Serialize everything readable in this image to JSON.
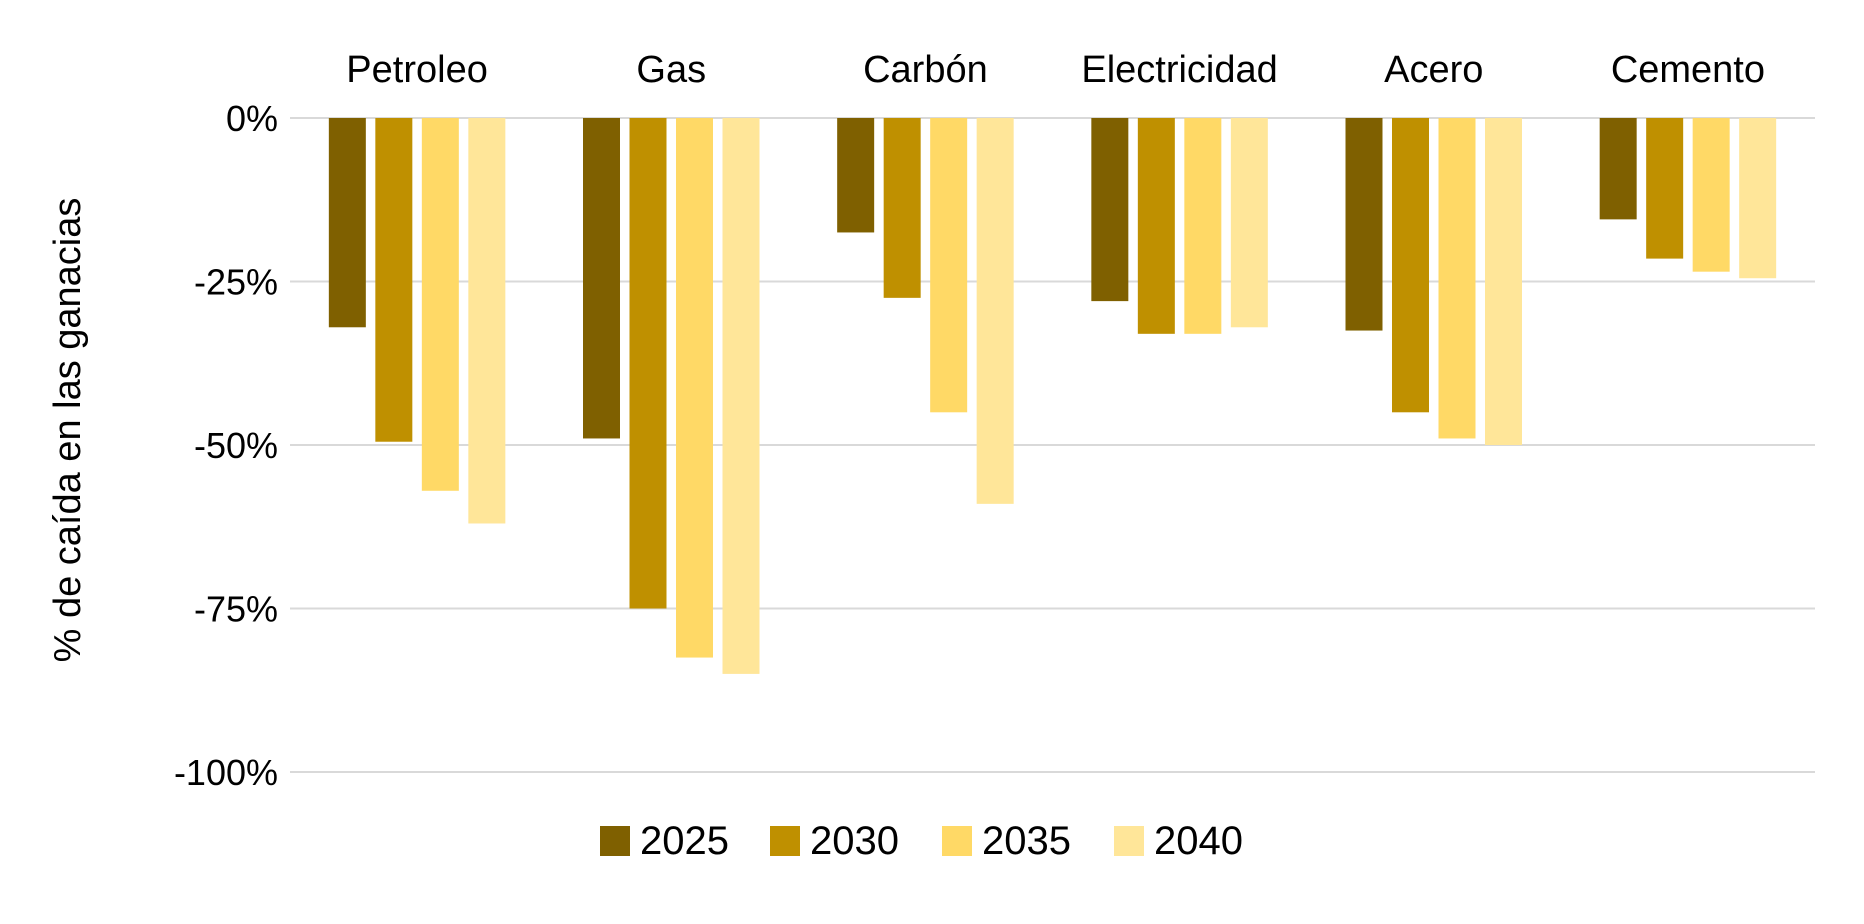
{
  "chart_data": {
    "type": "bar",
    "categories": [
      "Petroleo",
      "Gas",
      "Carbón",
      "Electricidad",
      "Acero",
      "Cemento"
    ],
    "series": [
      {
        "name": "2025",
        "color": "#7F6000",
        "values": [
          -32,
          -49,
          -17.5,
          -28,
          -32.5,
          -15.5
        ]
      },
      {
        "name": "2030",
        "color": "#BF9000",
        "values": [
          -49.5,
          -75,
          -27.5,
          -33,
          -45,
          -21.5
        ]
      },
      {
        "name": "2035",
        "color": "#FFD966",
        "values": [
          -57,
          -82.5,
          -45,
          -33,
          -49,
          -23.5
        ]
      },
      {
        "name": "2040",
        "color": "#FFE699",
        "values": [
          -62,
          -85,
          -59,
          -32,
          -50,
          -24.5
        ]
      }
    ],
    "ylabel": "% de caída en las ganacias",
    "xlabel": "",
    "ylim": [
      -100,
      0
    ],
    "yticks": [
      0,
      -25,
      -50,
      -75,
      -100
    ],
    "ytick_labels": [
      "0%",
      "-25%",
      "-50%",
      "-75%",
      "-100%"
    ],
    "category_label_position": "top",
    "grid": true,
    "legend_position": "bottom"
  }
}
